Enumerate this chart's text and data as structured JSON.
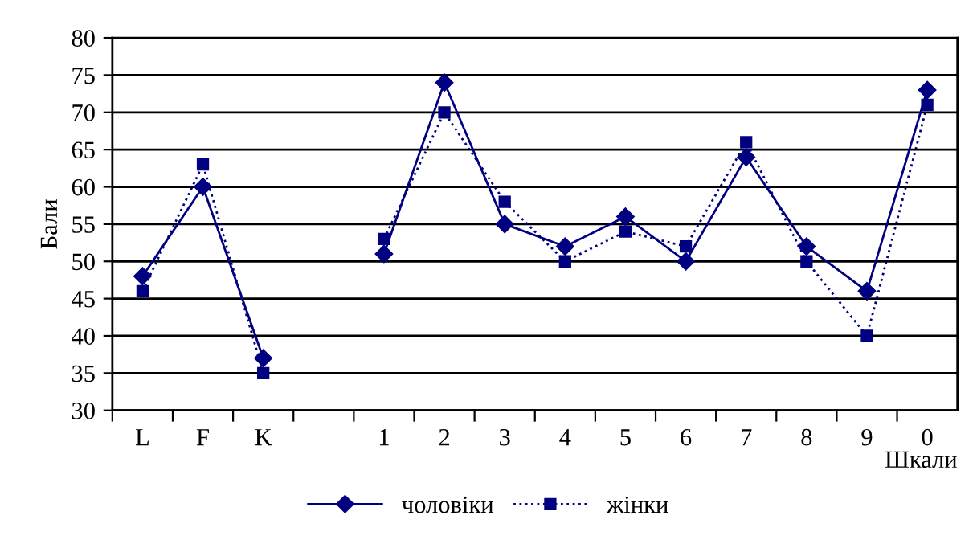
{
  "chart_data": {
    "type": "line",
    "ylabel": "Бали",
    "xlabel": "Шкали",
    "categories": [
      "L",
      "F",
      "K",
      null,
      "1",
      "2",
      "3",
      "4",
      "5",
      "6",
      "7",
      "8",
      "9",
      "0"
    ],
    "series": [
      {
        "name": "чоловіки",
        "color": "#000080",
        "marker": "diamond",
        "line_style": "solid",
        "values": [
          48,
          60,
          37,
          null,
          51,
          74,
          55,
          52,
          56,
          50,
          64,
          52,
          46,
          73
        ]
      },
      {
        "name": "жінки",
        "color": "#000080",
        "marker": "square",
        "line_style": "dotted",
        "values": [
          46,
          63,
          35,
          null,
          53,
          70,
          58,
          50,
          54,
          52,
          66,
          50,
          40,
          71
        ]
      }
    ],
    "ylim": [
      30,
      80
    ],
    "yticks": [
      30,
      35,
      40,
      45,
      50,
      55,
      60,
      65,
      70,
      75,
      80
    ],
    "grid": "y",
    "legend": "bottom"
  }
}
